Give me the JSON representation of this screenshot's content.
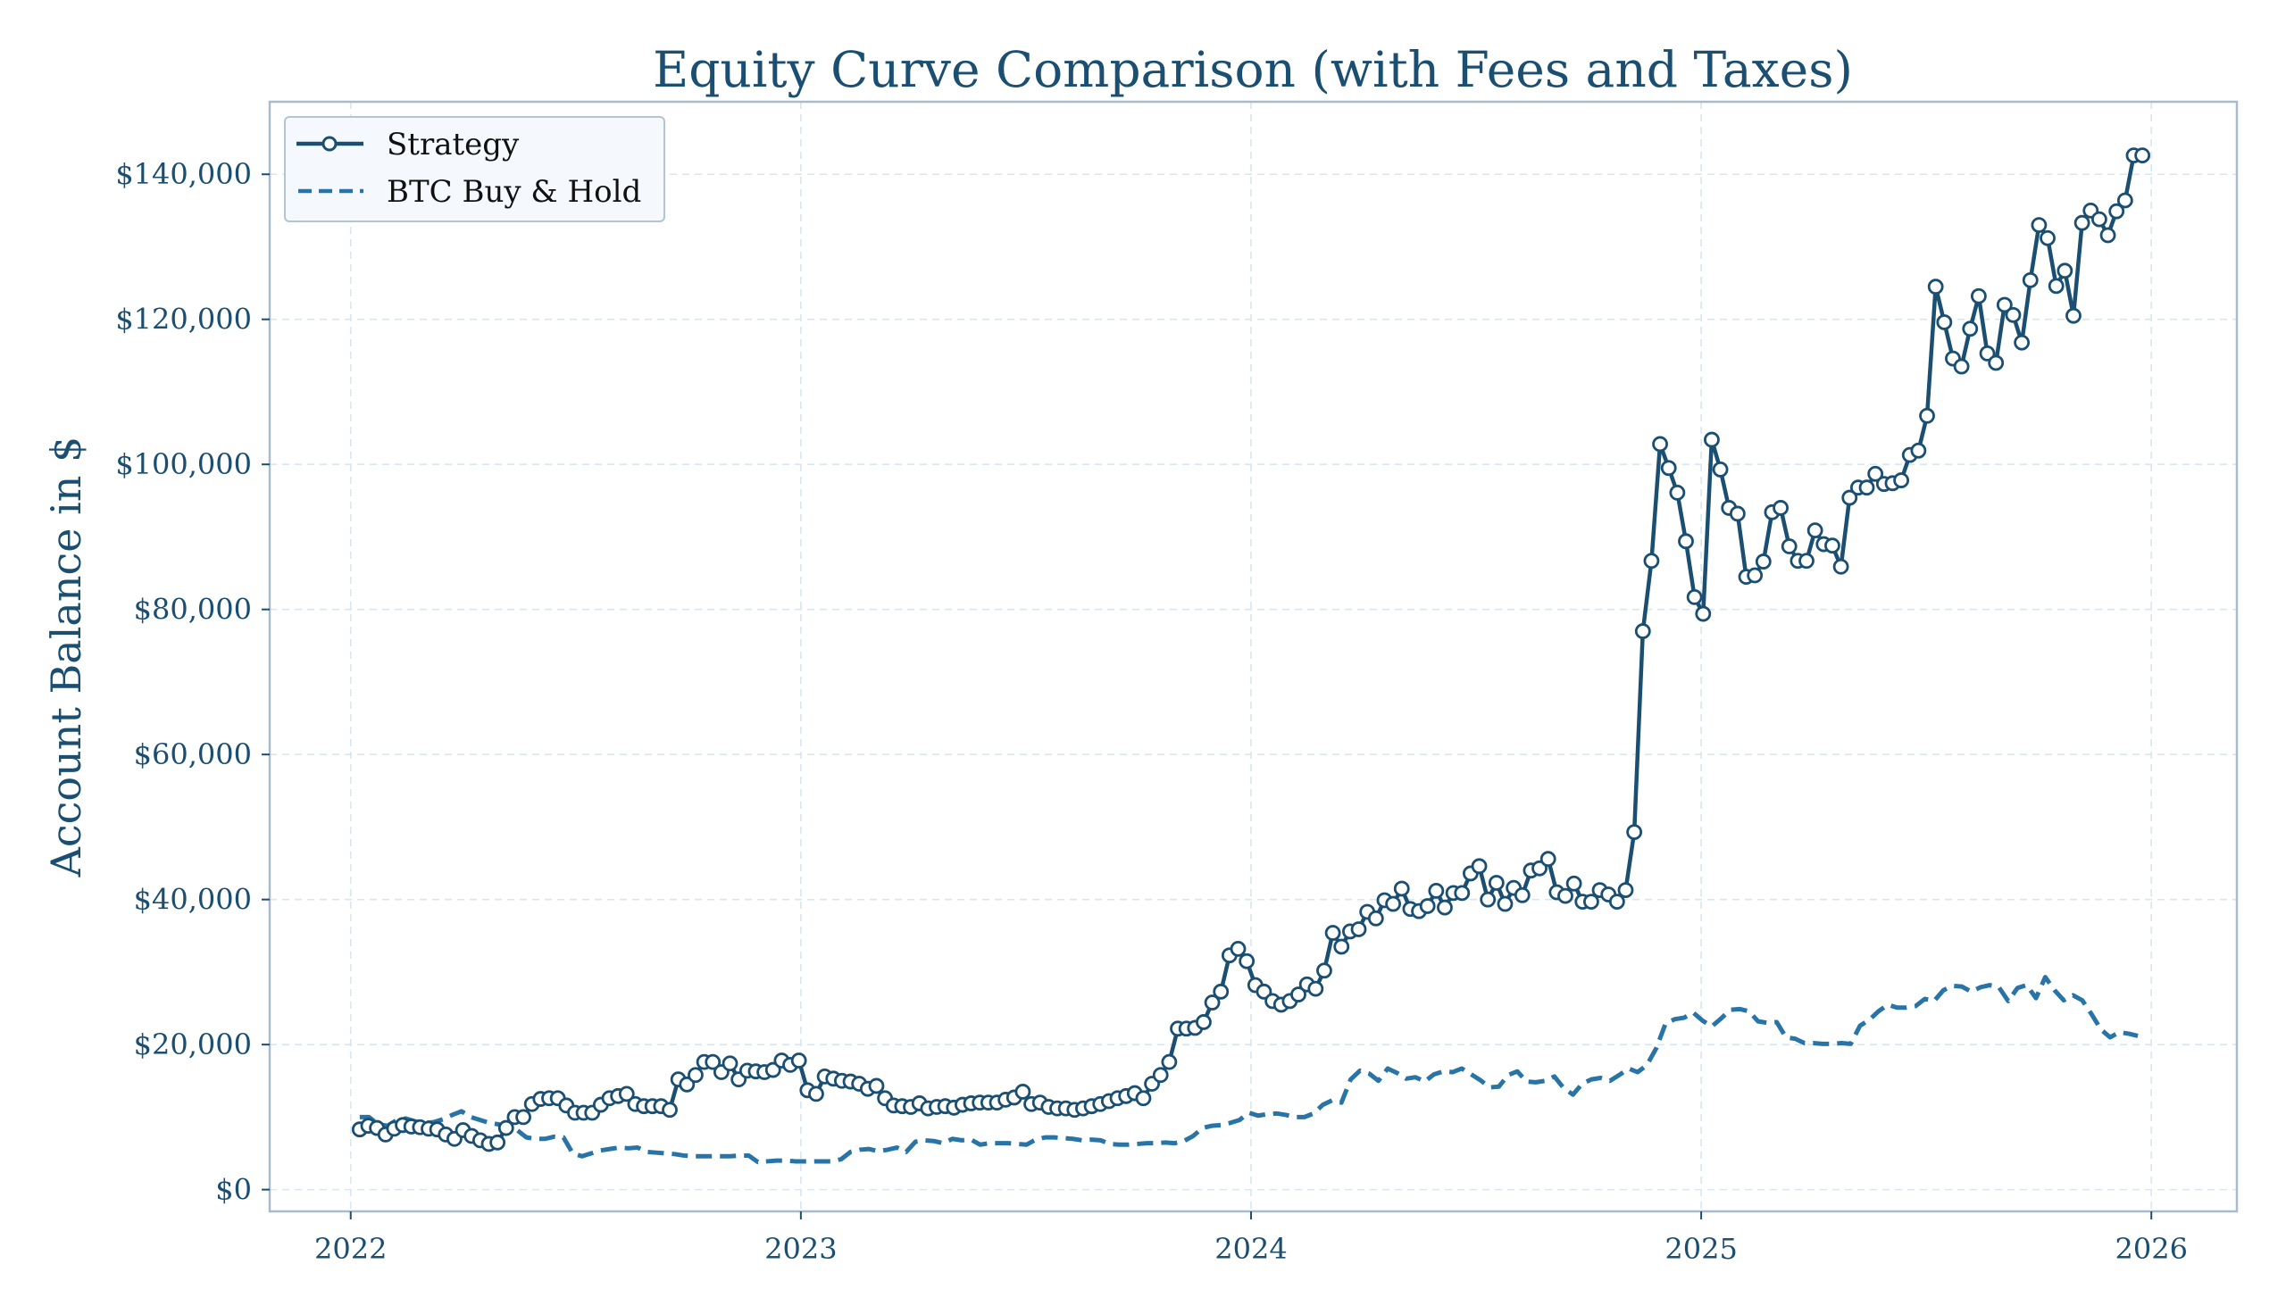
{
  "chart_data": {
    "type": "line",
    "title": "Equity Curve Comparison (with Fees and Taxes)",
    "xlabel": "",
    "ylabel": "Account Balance in $",
    "xlim": [
      2021.82,
      2026.19
    ],
    "ylim": [
      -3000,
      150000
    ],
    "x_ticks": [
      2022,
      2023,
      2024,
      2025,
      2026
    ],
    "x_tick_labels": [
      "2022",
      "2023",
      "2024",
      "2025",
      "2026"
    ],
    "y_ticks": [
      0,
      20000,
      40000,
      60000,
      80000,
      100000,
      120000,
      140000
    ],
    "y_tick_labels": [
      "$0",
      "$20,000",
      "$40,000",
      "$60,000",
      "$80,000",
      "$100,000",
      "$120,000",
      "$140,000"
    ],
    "grid": true,
    "legend_position": "top-left",
    "colors": {
      "strategy": "#1b4f72",
      "btc": "#2874a6",
      "grid": "#d6e6f2",
      "spine": "#a9bccb",
      "legend_bg": "#f5f9fd",
      "legend_border": "#b3c4d2"
    },
    "series": [
      {
        "name": "Strategy",
        "style": "solid-with-circle-markers",
        "x_start": 2022.02,
        "x_end": 2025.98,
        "values_k": [
          8.3,
          8.8,
          8.5,
          7.6,
          8.4,
          8.9,
          8.7,
          8.6,
          8.4,
          8.3,
          7.6,
          7.0,
          8.2,
          7.4,
          6.8,
          6.3,
          6.5,
          8.5,
          10.0,
          10.0,
          11.8,
          12.5,
          12.6,
          12.6,
          11.6,
          10.6,
          10.6,
          10.6,
          11.7,
          12.6,
          12.9,
          13.2,
          11.8,
          11.5,
          11.5,
          11.5,
          11.0,
          15.2,
          14.5,
          15.8,
          17.6,
          17.6,
          16.2,
          17.4,
          15.2,
          16.4,
          16.3,
          16.2,
          16.5,
          17.8,
          17.2,
          17.8,
          13.7,
          13.2,
          15.6,
          15.3,
          15.0,
          14.9,
          14.6,
          13.9,
          14.3,
          12.6,
          11.6,
          11.5,
          11.4,
          11.9,
          11.2,
          11.4,
          11.5,
          11.3,
          11.7,
          11.9,
          12.0,
          12.0,
          12.0,
          12.4,
          12.7,
          13.5,
          11.8,
          12.0,
          11.4,
          11.2,
          11.2,
          11.0,
          11.2,
          11.5,
          11.8,
          12.2,
          12.6,
          12.9,
          13.3,
          12.6,
          14.6,
          15.8,
          17.6,
          22.2,
          22.2,
          22.3,
          23.1,
          25.8,
          27.3,
          32.3,
          33.2,
          31.5,
          28.2,
          27.3,
          26.0,
          25.5,
          26.0,
          26.9,
          28.3,
          27.7,
          30.2,
          35.4,
          33.5,
          35.6,
          35.9,
          38.3,
          37.4,
          39.9,
          39.4,
          41.5,
          38.7,
          38.4,
          39.1,
          41.2,
          38.9,
          40.9,
          40.9,
          43.6,
          44.6,
          40.0,
          42.3,
          39.4,
          41.6,
          40.6,
          44.0,
          44.3,
          45.6,
          41.0,
          40.5,
          42.2,
          39.7,
          39.7,
          41.3,
          40.7,
          39.7,
          41.3,
          49.3,
          77.0,
          86.7,
          102.8,
          99.5,
          96.1,
          89.4,
          81.7,
          79.4,
          103.4,
          99.3,
          94.0,
          93.2,
          84.5,
          84.7,
          86.6,
          93.4,
          94.0,
          88.7,
          86.7,
          86.7,
          90.9,
          89.0,
          88.8,
          85.9,
          95.4,
          96.8,
          96.8,
          98.7,
          97.3,
          97.4,
          97.8,
          101.3,
          101.9,
          106.7,
          124.5,
          119.6,
          114.6,
          113.5,
          118.7,
          123.2,
          115.3,
          114.0,
          122.0,
          120.6,
          116.8,
          125.4,
          133.0,
          131.2,
          124.6,
          126.7,
          120.5,
          133.3,
          135.0,
          133.8,
          131.6,
          134.9,
          136.4,
          142.6,
          142.6
        ]
      },
      {
        "name": "BTC Buy & Hold",
        "style": "dashed",
        "x_start": 2022.02,
        "x_end": 2025.97,
        "values_k": [
          10.0,
          10.0,
          9.0,
          8.8,
          9.6,
          9.8,
          9.4,
          9.2,
          9.3,
          9.7,
          10.3,
          10.8,
          10.0,
          9.6,
          9.2,
          9.0,
          8.6,
          8.2,
          7.2,
          7.0,
          7.0,
          7.3,
          7.2,
          5.0,
          4.6,
          5.0,
          5.4,
          5.6,
          5.8,
          5.7,
          5.8,
          5.2,
          5.1,
          5.0,
          4.9,
          4.7,
          4.6,
          4.6,
          4.6,
          4.6,
          4.6,
          4.7,
          4.7,
          3.8,
          3.9,
          4.0,
          4.0,
          3.9,
          3.9,
          3.9,
          3.9,
          3.9,
          4.2,
          5.2,
          5.5,
          5.6,
          5.3,
          5.5,
          5.8,
          5.2,
          6.6,
          6.8,
          6.7,
          6.4,
          7.0,
          6.8,
          6.9,
          6.2,
          6.4,
          6.4,
          6.4,
          6.3,
          6.2,
          6.9,
          7.2,
          7.2,
          7.1,
          7.0,
          6.8,
          6.9,
          6.8,
          6.3,
          6.2,
          6.2,
          6.3,
          6.4,
          6.4,
          6.5,
          6.4,
          6.7,
          7.4,
          8.5,
          8.8,
          8.9,
          9.2,
          9.6,
          10.6,
          10.2,
          10.4,
          10.5,
          10.3,
          10.0,
          10.0,
          10.5,
          11.7,
          12.3,
          12.0,
          15.2,
          16.4,
          16.0,
          15.0,
          16.7,
          16.1,
          15.3,
          15.5,
          14.9,
          15.9,
          16.3,
          16.2,
          16.7,
          15.9,
          15.1,
          14.1,
          14.2,
          15.8,
          16.3,
          14.9,
          14.8,
          15.0,
          15.6,
          14.0,
          13.1,
          14.6,
          15.2,
          15.4,
          15.0,
          15.8,
          16.7,
          16.2,
          17.2,
          19.5,
          22.9,
          23.5,
          23.7,
          24.4,
          23.3,
          22.5,
          23.6,
          24.8,
          24.9,
          24.6,
          23.2,
          23.0,
          23.1,
          21.0,
          20.8,
          20.2,
          20.2,
          20.1,
          20.1,
          20.2,
          20.1,
          22.6,
          23.4,
          24.6,
          25.5,
          25.1,
          25.1,
          25.3,
          26.3,
          26.0,
          27.5,
          28.1,
          28.0,
          27.3,
          27.9,
          28.2,
          27.9,
          26.0,
          27.8,
          28.2,
          26.4,
          29.3,
          27.5,
          26.1,
          26.8,
          26.1,
          24.2,
          22.1,
          21.0,
          21.7,
          21.5,
          21.2
        ]
      }
    ],
    "legend": [
      {
        "label": "Strategy",
        "marker": "line-circle"
      },
      {
        "label": "BTC Buy & Hold",
        "marker": "dashed-line"
      }
    ]
  }
}
